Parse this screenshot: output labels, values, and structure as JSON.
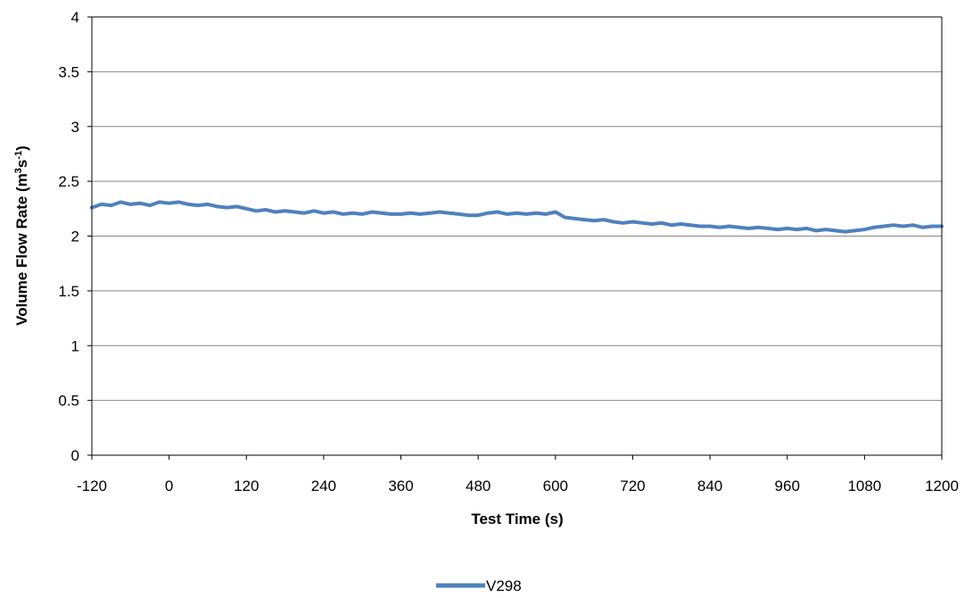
{
  "chart_data": {
    "type": "line",
    "xlabel": "Test Time (s)",
    "ylabel": {
      "base": "Volume Flow Rate (m",
      "sup1": "3",
      "mid": "s",
      "sup2": "-1",
      "end": ")"
    },
    "xlim": [
      -120,
      1200
    ],
    "ylim": [
      0,
      4
    ],
    "xticks": [
      -120,
      0,
      120,
      240,
      360,
      480,
      600,
      720,
      840,
      960,
      1080,
      1200
    ],
    "yticks": [
      0,
      0.5,
      1,
      1.5,
      2,
      2.5,
      3,
      3.5,
      4
    ],
    "ytick_labels": [
      "0",
      "0.5",
      "1",
      "1.5",
      "2",
      "2.5",
      "3",
      "3.5",
      "4"
    ],
    "grid": "horizontal",
    "legend_position": "bottom-center",
    "colors": {
      "series": "#4f81bd",
      "grid": "#868686",
      "axis": "#000000"
    },
    "series": [
      {
        "name": "V298",
        "x": [
          -120,
          -105,
          -90,
          -75,
          -60,
          -45,
          -30,
          -15,
          0,
          15,
          30,
          45,
          60,
          75,
          90,
          105,
          120,
          135,
          150,
          165,
          180,
          195,
          210,
          225,
          240,
          255,
          270,
          285,
          300,
          315,
          330,
          345,
          360,
          375,
          390,
          405,
          420,
          435,
          450,
          465,
          480,
          495,
          510,
          525,
          540,
          555,
          570,
          585,
          600,
          615,
          630,
          645,
          660,
          675,
          690,
          705,
          720,
          735,
          750,
          765,
          780,
          795,
          810,
          825,
          840,
          855,
          870,
          885,
          900,
          915,
          930,
          945,
          960,
          975,
          990,
          1005,
          1020,
          1035,
          1050,
          1065,
          1080,
          1095,
          1110,
          1125,
          1140,
          1155,
          1170,
          1185,
          1200
        ],
        "y": [
          2.26,
          2.29,
          2.28,
          2.31,
          2.29,
          2.3,
          2.28,
          2.31,
          2.3,
          2.31,
          2.29,
          2.28,
          2.29,
          2.27,
          2.26,
          2.27,
          2.25,
          2.23,
          2.24,
          2.22,
          2.23,
          2.22,
          2.21,
          2.23,
          2.21,
          2.22,
          2.2,
          2.21,
          2.2,
          2.22,
          2.21,
          2.2,
          2.2,
          2.21,
          2.2,
          2.21,
          2.22,
          2.21,
          2.2,
          2.19,
          2.19,
          2.21,
          2.22,
          2.2,
          2.21,
          2.2,
          2.21,
          2.2,
          2.22,
          2.17,
          2.16,
          2.15,
          2.14,
          2.15,
          2.13,
          2.12,
          2.13,
          2.12,
          2.11,
          2.12,
          2.1,
          2.11,
          2.1,
          2.09,
          2.09,
          2.08,
          2.09,
          2.08,
          2.07,
          2.08,
          2.07,
          2.06,
          2.07,
          2.06,
          2.07,
          2.05,
          2.06,
          2.05,
          2.04,
          2.05,
          2.06,
          2.08,
          2.09,
          2.1,
          2.09,
          2.1,
          2.08,
          2.09,
          2.09
        ]
      }
    ]
  }
}
